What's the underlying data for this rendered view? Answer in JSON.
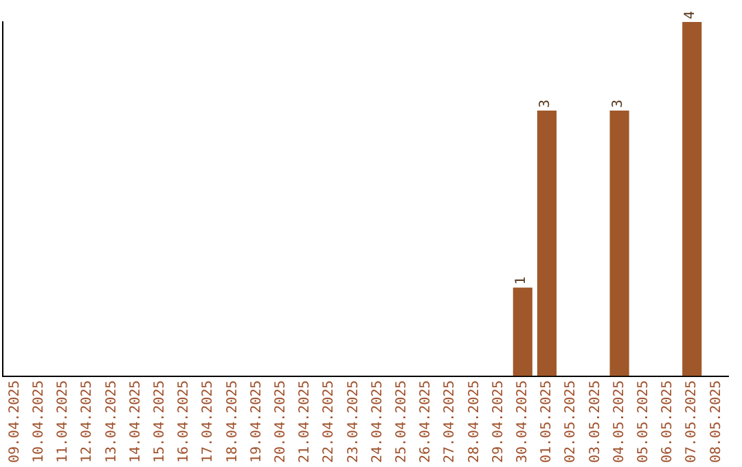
{
  "chart_data": {
    "type": "bar",
    "categories": [
      "09.04.2025",
      "10.04.2025",
      "11.04.2025",
      "12.04.2025",
      "13.04.2025",
      "14.04.2025",
      "15.04.2025",
      "16.04.2025",
      "17.04.2025",
      "18.04.2025",
      "19.04.2025",
      "20.04.2025",
      "21.04.2025",
      "22.04.2025",
      "23.04.2025",
      "24.04.2025",
      "25.04.2025",
      "26.04.2025",
      "27.04.2025",
      "28.04.2025",
      "29.04.2025",
      "30.04.2025",
      "01.05.2025",
      "02.05.2025",
      "03.05.2025",
      "04.05.2025",
      "05.05.2025",
      "06.05.2025",
      "07.05.2025",
      "08.05.2025"
    ],
    "values": [
      null,
      null,
      null,
      null,
      null,
      null,
      null,
      null,
      null,
      null,
      null,
      null,
      null,
      null,
      null,
      null,
      null,
      null,
      null,
      null,
      null,
      1,
      3,
      null,
      null,
      3,
      null,
      null,
      4,
      null
    ],
    "value_labels": [
      null,
      null,
      null,
      null,
      null,
      null,
      null,
      null,
      null,
      null,
      null,
      null,
      null,
      null,
      null,
      null,
      null,
      null,
      null,
      null,
      null,
      "1",
      "3",
      null,
      null,
      "3",
      null,
      null,
      "4",
      null
    ],
    "color": "#a0582a",
    "grid": false
  }
}
